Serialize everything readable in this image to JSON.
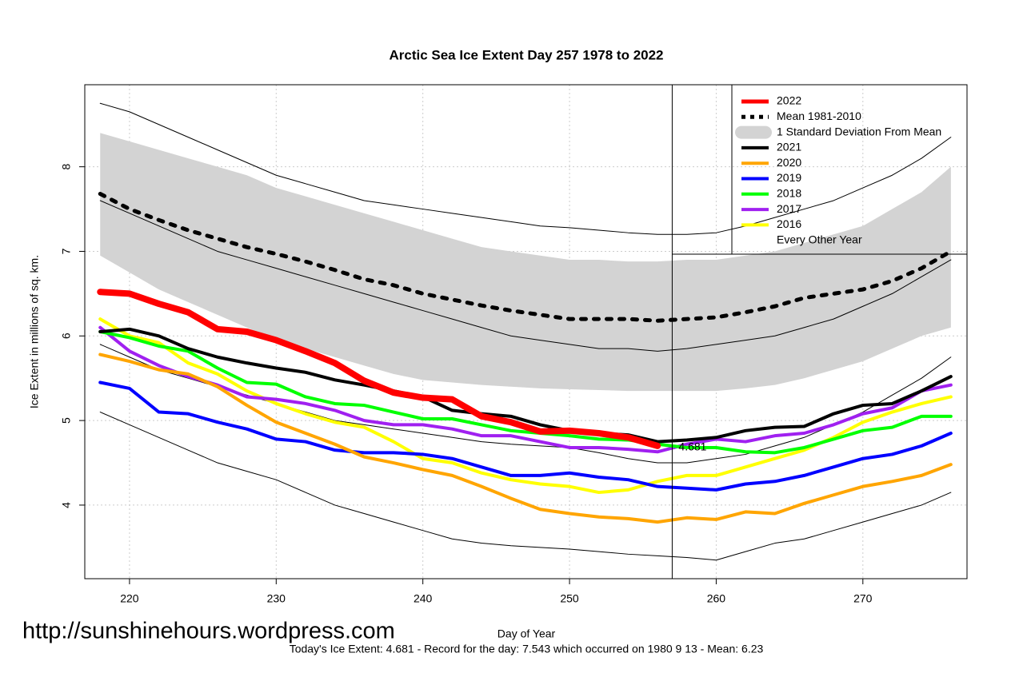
{
  "chart_data": {
    "type": "line",
    "title": "Arctic Sea Ice Extent Day 257 1978 to 2022",
    "x_label": "Day of Year",
    "y_label": "Ice Extent in millions of sq. km.",
    "footer": "Today's Ice Extent: 4.681  - Record for the day: 7.543 which occurred on 1980 9 13  - Mean: 6.23",
    "watermark": "http://sunshinehours.wordpress.com",
    "xlim": [
      216.95,
      277.1
    ],
    "ylim": [
      3.13,
      8.97
    ],
    "xticks": [
      220,
      230,
      240,
      250,
      260,
      270
    ],
    "yticks": [
      4,
      5,
      6,
      7,
      8
    ],
    "grid": true,
    "legend": "topright",
    "vline": 257,
    "annotation": {
      "x": 257,
      "y": 4.681,
      "color": "#2e8b57"
    },
    "x": [
      218,
      220,
      222,
      224,
      226,
      228,
      230,
      232,
      234,
      236,
      238,
      240,
      242,
      244,
      246,
      248,
      250,
      252,
      254,
      256,
      258,
      260,
      262,
      264,
      266,
      268,
      270,
      272,
      274,
      276
    ],
    "series": [
      {
        "name": "2022",
        "color": "#ff0000",
        "width": 8,
        "values": [
          6.52,
          6.5,
          6.38,
          6.28,
          6.08,
          6.05,
          5.95,
          5.82,
          5.68,
          5.47,
          5.33,
          5.27,
          5.25,
          5.05,
          4.98,
          4.87,
          4.88,
          4.85,
          4.8,
          4.7,
          null,
          null,
          null,
          null,
          null,
          null,
          null,
          null,
          null,
          null
        ]
      },
      {
        "name": "Mean 1981-2010",
        "color": "#000000",
        "width": 5,
        "dash": true,
        "values": [
          7.68,
          7.5,
          7.37,
          7.25,
          7.15,
          7.05,
          6.97,
          6.88,
          6.78,
          6.67,
          6.6,
          6.5,
          6.43,
          6.36,
          6.3,
          6.25,
          6.2,
          6.2,
          6.2,
          6.18,
          6.2,
          6.22,
          6.28,
          6.35,
          6.45,
          6.5,
          6.55,
          6.65,
          6.8,
          7.0
        ]
      },
      {
        "name": "1 Standard Deviation From Mean",
        "color": "#d3d3d3",
        "band": true,
        "upper": [
          8.4,
          8.3,
          8.2,
          8.1,
          8.0,
          7.9,
          7.75,
          7.65,
          7.55,
          7.45,
          7.35,
          7.25,
          7.15,
          7.05,
          7.0,
          6.95,
          6.9,
          6.9,
          6.88,
          6.88,
          6.9,
          6.9,
          6.95,
          7.0,
          7.1,
          7.2,
          7.3,
          7.5,
          7.7,
          8.0
        ],
        "lower": [
          6.95,
          6.75,
          6.55,
          6.4,
          6.25,
          6.1,
          5.95,
          5.85,
          5.75,
          5.65,
          5.55,
          5.48,
          5.45,
          5.42,
          5.4,
          5.38,
          5.37,
          5.36,
          5.35,
          5.35,
          5.35,
          5.35,
          5.38,
          5.42,
          5.5,
          5.6,
          5.7,
          5.85,
          6.0,
          6.1
        ]
      },
      {
        "name": "2021",
        "color": "#000000",
        "width": 4,
        "values": [
          6.05,
          6.08,
          6.0,
          5.85,
          5.75,
          5.68,
          5.62,
          5.57,
          5.48,
          5.42,
          5.35,
          5.28,
          5.12,
          5.08,
          5.05,
          4.95,
          4.88,
          4.85,
          4.83,
          4.75,
          4.77,
          4.8,
          4.88,
          4.92,
          4.93,
          5.08,
          5.18,
          5.2,
          5.35,
          5.52
        ]
      },
      {
        "name": "2020",
        "color": "#ffa500",
        "width": 4,
        "values": [
          5.78,
          5.7,
          5.6,
          5.55,
          5.4,
          5.18,
          4.98,
          4.85,
          4.72,
          4.57,
          4.5,
          4.42,
          4.35,
          4.22,
          4.08,
          3.95,
          3.9,
          3.86,
          3.84,
          3.8,
          3.85,
          3.83,
          3.92,
          3.9,
          4.02,
          4.12,
          4.22,
          4.28,
          4.35,
          4.48
        ]
      },
      {
        "name": "2019",
        "color": "#0000ff",
        "width": 4,
        "values": [
          5.45,
          5.38,
          5.1,
          5.08,
          4.98,
          4.9,
          4.78,
          4.75,
          4.65,
          4.62,
          4.62,
          4.6,
          4.55,
          4.45,
          4.35,
          4.35,
          4.38,
          4.33,
          4.3,
          4.22,
          4.2,
          4.18,
          4.25,
          4.28,
          4.35,
          4.45,
          4.55,
          4.6,
          4.7,
          4.85
        ]
      },
      {
        "name": "2018",
        "color": "#00ff00",
        "width": 4,
        "values": [
          6.05,
          5.98,
          5.88,
          5.82,
          5.62,
          5.45,
          5.43,
          5.28,
          5.2,
          5.18,
          5.1,
          5.02,
          5.02,
          4.95,
          4.88,
          4.85,
          4.82,
          4.78,
          4.77,
          4.72,
          4.68,
          4.68,
          4.63,
          4.62,
          4.68,
          4.78,
          4.88,
          4.92,
          5.05,
          5.05
        ]
      },
      {
        "name": "2017",
        "color": "#a020f0",
        "width": 4,
        "values": [
          6.1,
          5.82,
          5.65,
          5.52,
          5.42,
          5.28,
          5.25,
          5.2,
          5.12,
          5.0,
          4.95,
          4.95,
          4.9,
          4.82,
          4.82,
          4.75,
          4.68,
          4.68,
          4.66,
          4.63,
          4.72,
          4.78,
          4.75,
          4.82,
          4.85,
          4.95,
          5.08,
          5.15,
          5.35,
          5.42
        ]
      },
      {
        "name": "2016",
        "color": "#ffff00",
        "width": 4,
        "values": [
          6.2,
          6.0,
          5.92,
          5.68,
          5.55,
          5.35,
          5.2,
          5.08,
          4.98,
          4.92,
          4.75,
          4.55,
          4.5,
          4.38,
          4.3,
          4.25,
          4.22,
          4.15,
          4.18,
          4.28,
          4.35,
          4.35,
          4.45,
          4.55,
          4.65,
          4.8,
          4.98,
          5.1,
          5.2,
          5.28
        ]
      },
      {
        "name": "Every Other Year",
        "color": "#000000",
        "width": 1,
        "lines": [
          [
            8.75,
            8.65,
            8.5,
            8.35,
            8.2,
            8.05,
            7.9,
            7.8,
            7.7,
            7.6,
            7.55,
            7.5,
            7.45,
            7.4,
            7.35,
            7.3,
            7.28,
            7.25,
            7.22,
            7.2,
            7.2,
            7.22,
            7.3,
            7.4,
            7.5,
            7.6,
            7.75,
            7.9,
            8.1,
            8.35
          ],
          [
            7.6,
            7.45,
            7.3,
            7.15,
            7.0,
            6.9,
            6.8,
            6.7,
            6.6,
            6.5,
            6.4,
            6.3,
            6.2,
            6.1,
            6.0,
            5.95,
            5.9,
            5.85,
            5.85,
            5.82,
            5.85,
            5.9,
            5.95,
            6.0,
            6.1,
            6.2,
            6.35,
            6.5,
            6.7,
            6.9
          ],
          [
            5.9,
            5.75,
            5.6,
            5.5,
            5.4,
            5.3,
            5.2,
            5.1,
            5.0,
            4.95,
            4.9,
            4.85,
            4.8,
            4.75,
            4.72,
            4.7,
            4.68,
            4.62,
            4.55,
            4.5,
            4.5,
            4.55,
            4.6,
            4.7,
            4.8,
            4.95,
            5.1,
            5.3,
            5.5,
            5.75
          ],
          [
            5.1,
            4.95,
            4.8,
            4.65,
            4.5,
            4.4,
            4.3,
            4.15,
            4.0,
            3.9,
            3.8,
            3.7,
            3.6,
            3.55,
            3.52,
            3.5,
            3.48,
            3.45,
            3.42,
            3.4,
            3.38,
            3.35,
            3.45,
            3.55,
            3.6,
            3.7,
            3.8,
            3.9,
            4.0,
            4.15
          ]
        ]
      }
    ]
  }
}
